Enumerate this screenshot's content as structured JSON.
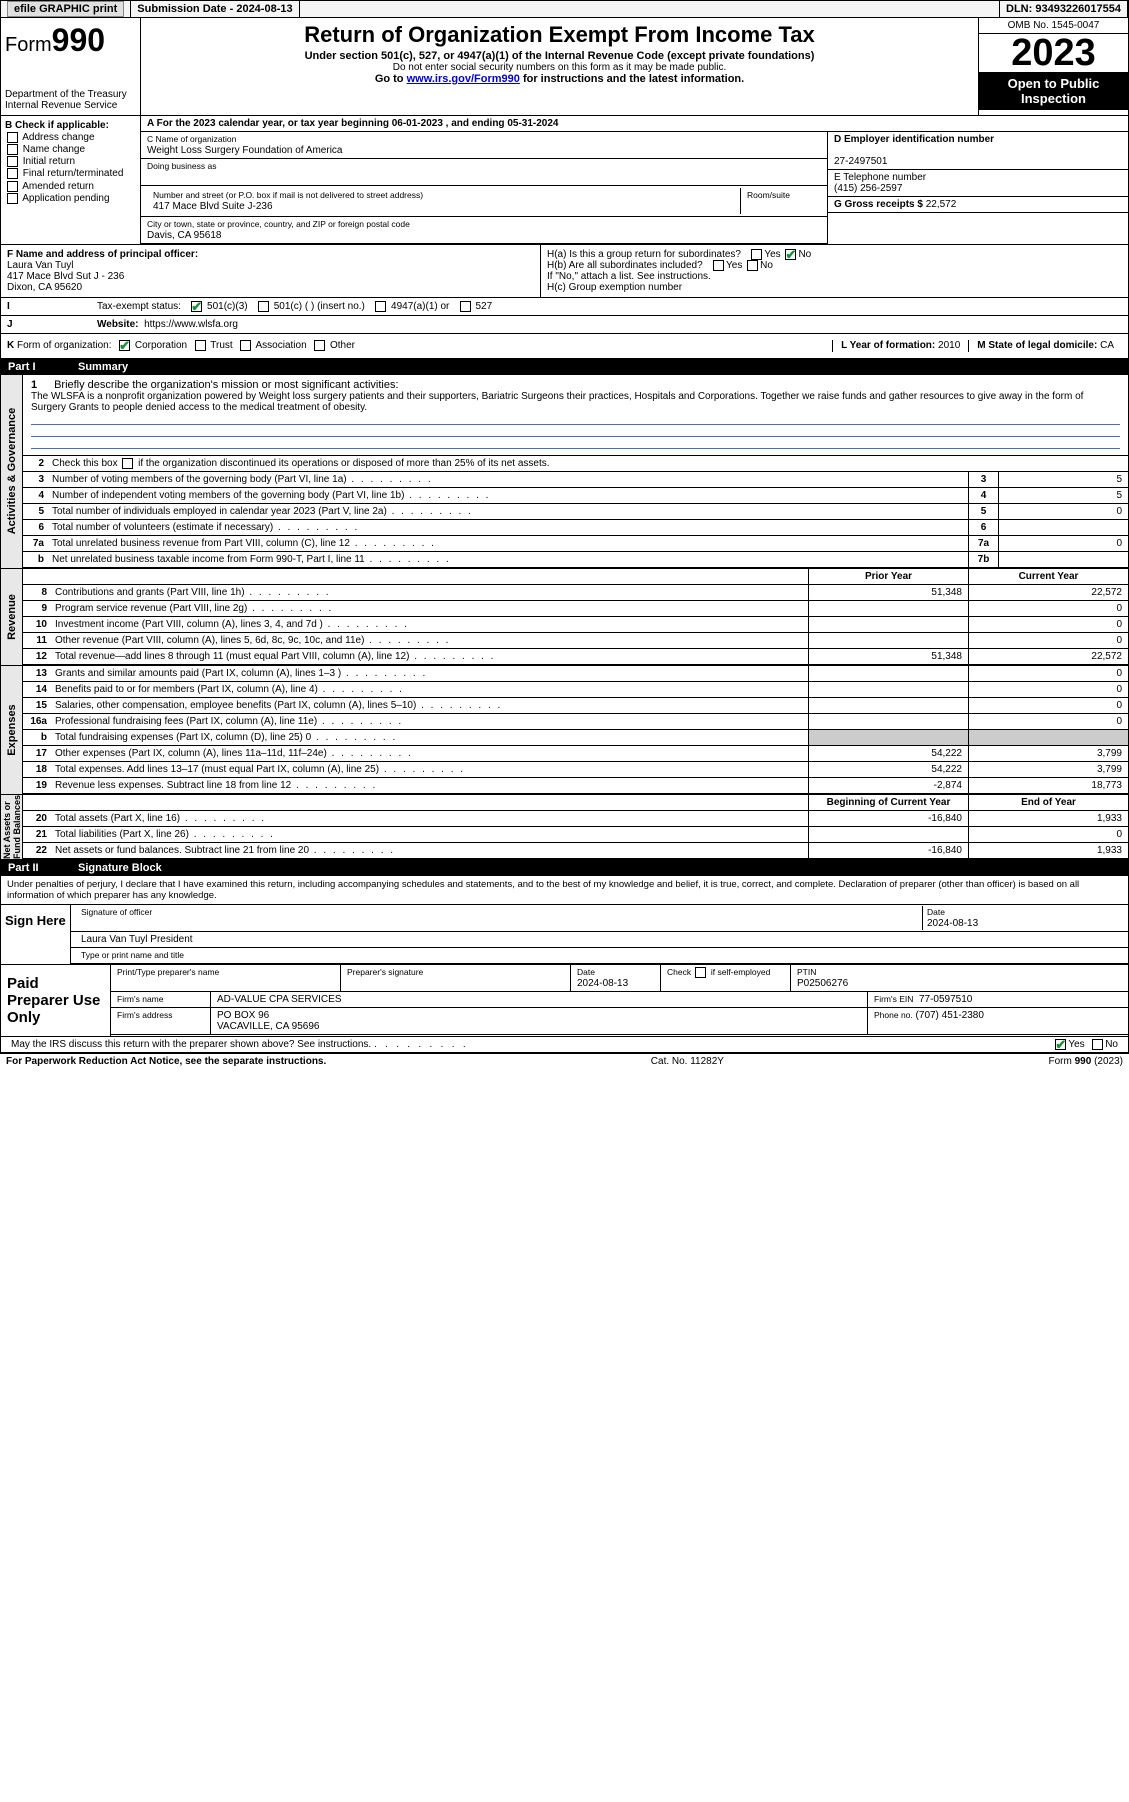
{
  "topbar": {
    "efile": "efile GRAPHIC print",
    "subdate_label": "Submission Date - ",
    "subdate": "2024-08-13",
    "dln_label": "DLN: ",
    "dln": "93493226017554"
  },
  "header": {
    "form_prefix": "Form",
    "form_num": "990",
    "dept": "Department of the Treasury",
    "irs": "Internal Revenue Service",
    "title": "Return of Organization Exempt From Income Tax",
    "sub": "Under section 501(c), 527, or 4947(a)(1) of the Internal Revenue Code (except private foundations)",
    "note": "Do not enter social security numbers on this form as it may be made public.",
    "goto_pre": "Go to ",
    "goto_link": "www.irs.gov/Form990",
    "goto_post": " for instructions and the latest information.",
    "omb": "OMB No. 1545-0047",
    "year": "2023",
    "inspect1": "Open to Public",
    "inspect2": "Inspection"
  },
  "section_a": {
    "taxyear": "A For the 2023 calendar year, or tax year beginning 06-01-2023   , and ending 05-31-2024",
    "b_label": "B Check if applicable:",
    "b_items": [
      "Address change",
      "Name change",
      "Initial return",
      "Final return/terminated",
      "Amended return",
      "Application pending"
    ],
    "c_label": "C Name of organization",
    "c_name": "Weight Loss Surgery Foundation of America",
    "dba_label": "Doing business as",
    "addr_label": "Number and street (or P.O. box if mail is not delivered to street address)",
    "roomsuite": "Room/suite",
    "addr": "417 Mace Blvd Suite J-236",
    "city_label": "City or town, state or province, country, and ZIP or foreign postal code",
    "city": "Davis, CA  95618",
    "d_label": "D Employer identification number",
    "ein": "27-2497501",
    "e_label": "E Telephone number",
    "phone": "(415) 256-2597",
    "g_label": "G Gross receipts $ ",
    "gross": "22,572"
  },
  "section_f": {
    "f_label": "F Name and address of principal officer:",
    "officer_name": "Laura Van Tuyl",
    "officer_addr1": "417 Mace Blvd Sut J - 236",
    "officer_addr2": "Dixon, CA  95620",
    "h_a": "H(a)  Is this a group return for subordinates?",
    "h_b": "H(b)  Are all subordinates included?",
    "h_b_note": "If \"No,\" attach a list. See instructions.",
    "h_c": "H(c)  Group exemption number",
    "yes": "Yes",
    "no": "No"
  },
  "row_i": {
    "label": "I",
    "text": "Tax-exempt status:",
    "opts": [
      "501(c)(3)",
      "501(c) (  ) (insert no.)",
      "4947(a)(1) or",
      "527"
    ]
  },
  "row_j": {
    "label": "J",
    "text": "Website:",
    "url": "https://www.wlsfa.org"
  },
  "row_k": {
    "label": "K",
    "text": "Form of organization:",
    "opts": [
      "Corporation",
      "Trust",
      "Association",
      "Other"
    ],
    "l_label": "L Year of formation: ",
    "l_val": "2010",
    "m_label": "M State of legal domicile: ",
    "m_val": "CA"
  },
  "part1": {
    "num": "Part I",
    "title": "Summary"
  },
  "mission": {
    "num": "1",
    "label": "Briefly describe the organization's mission or most significant activities:",
    "text": "The WLSFA is a nonprofit organization powered by Weight loss surgery patients and their supporters, Bariatric Surgeons their practices, Hospitals and Corporations. Together we raise funds and gather resources to give away in the form of Surgery Grants to people denied access to the medical treatment of obesity."
  },
  "line2": {
    "num": "2",
    "text": "Check this box      if the organization discontinued its operations or disposed of more than 25% of its net assets."
  },
  "gov_rows": [
    {
      "num": "3",
      "desc": "Number of voting members of the governing body (Part VI, line 1a)",
      "n": "3",
      "v": "5"
    },
    {
      "num": "4",
      "desc": "Number of independent voting members of the governing body (Part VI, line 1b)",
      "n": "4",
      "v": "5"
    },
    {
      "num": "5",
      "desc": "Total number of individuals employed in calendar year 2023 (Part V, line 2a)",
      "n": "5",
      "v": "0"
    },
    {
      "num": "6",
      "desc": "Total number of volunteers (estimate if necessary)",
      "n": "6",
      "v": ""
    },
    {
      "num": "7a",
      "desc": "Total unrelated business revenue from Part VIII, column (C), line 12",
      "n": "7a",
      "v": "0"
    },
    {
      "num": "b",
      "desc": "Net unrelated business taxable income from Form 990-T, Part I, line 11",
      "n": "7b",
      "v": ""
    }
  ],
  "rev_hdr": {
    "prior": "Prior Year",
    "current": "Current Year"
  },
  "rev_rows": [
    {
      "num": "8",
      "desc": "Contributions and grants (Part VIII, line 1h)",
      "c1": "51,348",
      "c2": "22,572"
    },
    {
      "num": "9",
      "desc": "Program service revenue (Part VIII, line 2g)",
      "c1": "",
      "c2": "0"
    },
    {
      "num": "10",
      "desc": "Investment income (Part VIII, column (A), lines 3, 4, and 7d )",
      "c1": "",
      "c2": "0"
    },
    {
      "num": "11",
      "desc": "Other revenue (Part VIII, column (A), lines 5, 6d, 8c, 9c, 10c, and 11e)",
      "c1": "",
      "c2": "0"
    },
    {
      "num": "12",
      "desc": "Total revenue—add lines 8 through 11 (must equal Part VIII, column (A), line 12)",
      "c1": "51,348",
      "c2": "22,572"
    }
  ],
  "exp_rows": [
    {
      "num": "13",
      "desc": "Grants and similar amounts paid (Part IX, column (A), lines 1–3 )",
      "c1": "",
      "c2": "0"
    },
    {
      "num": "14",
      "desc": "Benefits paid to or for members (Part IX, column (A), line 4)",
      "c1": "",
      "c2": "0"
    },
    {
      "num": "15",
      "desc": "Salaries, other compensation, employee benefits (Part IX, column (A), lines 5–10)",
      "c1": "",
      "c2": "0"
    },
    {
      "num": "16a",
      "desc": "Professional fundraising fees (Part IX, column (A), line 11e)",
      "c1": "",
      "c2": "0"
    },
    {
      "num": "b",
      "desc": "Total fundraising expenses (Part IX, column (D), line 25) 0",
      "c1": "shade",
      "c2": "shade"
    },
    {
      "num": "17",
      "desc": "Other expenses (Part IX, column (A), lines 11a–11d, 11f–24e)",
      "c1": "54,222",
      "c2": "3,799"
    },
    {
      "num": "18",
      "desc": "Total expenses. Add lines 13–17 (must equal Part IX, column (A), line 25)",
      "c1": "54,222",
      "c2": "3,799"
    },
    {
      "num": "19",
      "desc": "Revenue less expenses. Subtract line 18 from line 12",
      "c1": "-2,874",
      "c2": "18,773"
    }
  ],
  "net_hdr": {
    "c1": "Beginning of Current Year",
    "c2": "End of Year"
  },
  "net_rows": [
    {
      "num": "20",
      "desc": "Total assets (Part X, line 16)",
      "c1": "-16,840",
      "c2": "1,933"
    },
    {
      "num": "21",
      "desc": "Total liabilities (Part X, line 26)",
      "c1": "",
      "c2": "0"
    },
    {
      "num": "22",
      "desc": "Net assets or fund balances. Subtract line 21 from line 20",
      "c1": "-16,840",
      "c2": "1,933"
    }
  ],
  "vlabels": {
    "gov": "Activities & Governance",
    "rev": "Revenue",
    "exp": "Expenses",
    "net": "Net Assets or\nFund Balances"
  },
  "part2": {
    "num": "Part II",
    "title": "Signature Block"
  },
  "sig": {
    "perjury": "Under penalties of perjury, I declare that I have examined this return, including accompanying schedules and statements, and to the best of my knowledge and belief, it is true, correct, and complete. Declaration of preparer (other than officer) is based on all information of which preparer has any knowledge.",
    "sign_here": "Sign Here",
    "sig_officer": "Signature of officer",
    "officer_name": "Laura Van Tuyl President",
    "type_name": "Type or print name and title",
    "date_label": "Date",
    "date": "2024-08-13",
    "paid": "Paid Preparer Use Only",
    "prep_name_label": "Print/Type preparer's name",
    "prep_sig_label": "Preparer's signature",
    "prep_date": "Date\n2024-08-13",
    "check_self": "Check       if self-employed",
    "ptin_label": "PTIN",
    "ptin": "P02506276",
    "firm_name_label": "Firm's name",
    "firm_name": "AD-VALUE CPA SERVICES",
    "firm_ein_label": "Firm's EIN",
    "firm_ein": "77-0597510",
    "firm_addr_label": "Firm's address",
    "firm_addr1": "PO BOX 96",
    "firm_addr2": "VACAVILLE, CA  95696",
    "phone_label": "Phone no.",
    "phone": "(707) 451-2380",
    "discuss": "May the IRS discuss this return with the preparer shown above? See instructions."
  },
  "footer": {
    "left": "For Paperwork Reduction Act Notice, see the separate instructions.",
    "mid": "Cat. No. 11282Y",
    "right": "Form 990 (2023)"
  }
}
